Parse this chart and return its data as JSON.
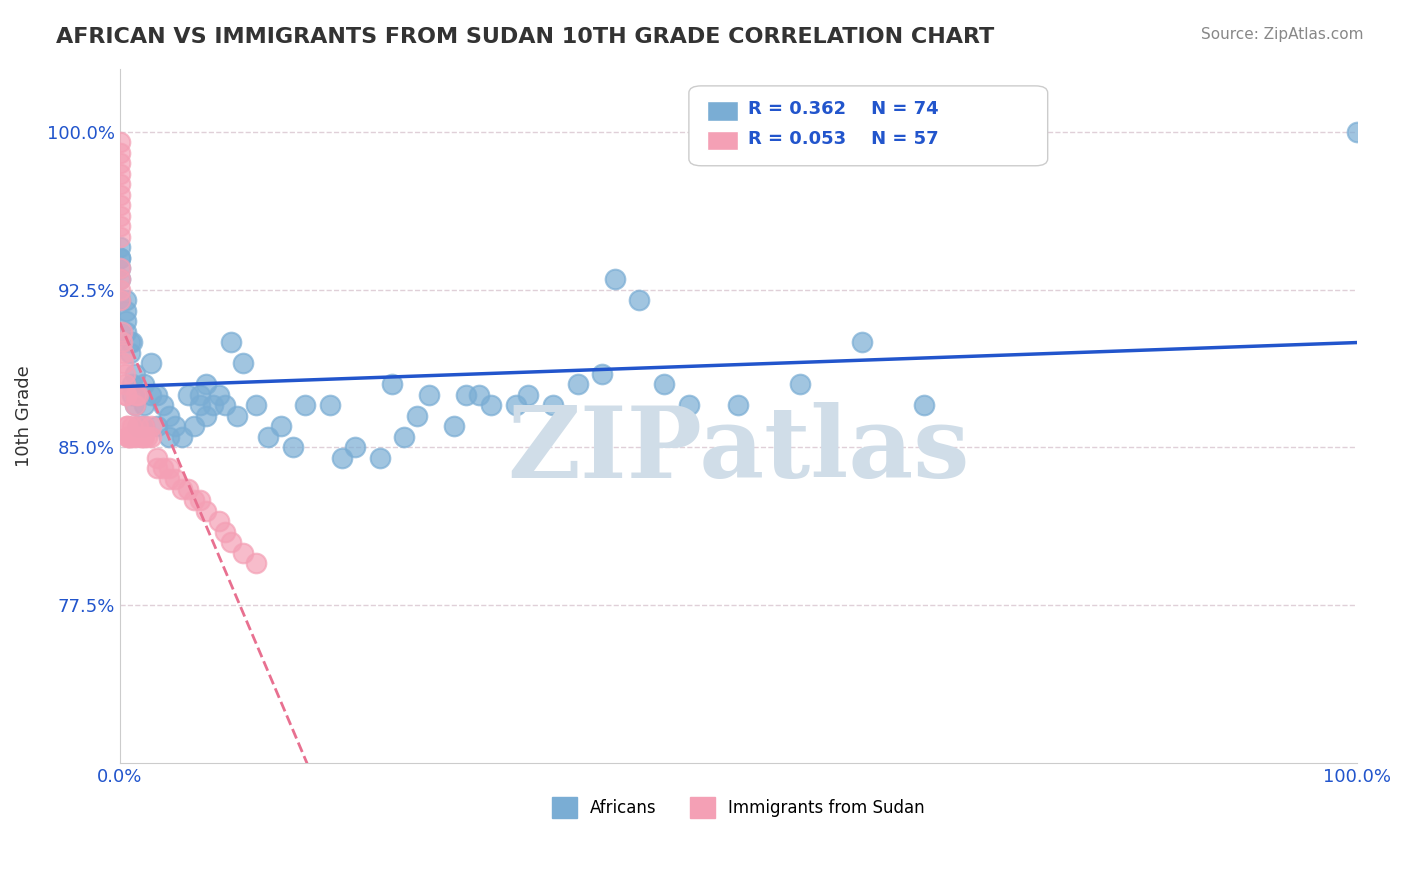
{
  "title": "AFRICAN VS IMMIGRANTS FROM SUDAN 10TH GRADE CORRELATION CHART",
  "source_text": "Source: ZipAtlas.com",
  "xlabel": "",
  "ylabel": "10th Grade",
  "xlim": [
    0.0,
    1.0
  ],
  "ylim": [
    0.7,
    1.03
  ],
  "yticks": [
    0.775,
    0.85,
    0.925,
    1.0
  ],
  "ytick_labels": [
    "77.5%",
    "85.0%",
    "92.5%",
    "100.0%"
  ],
  "xticks": [
    0.0,
    1.0
  ],
  "xtick_labels": [
    "0.0%",
    "100.0%"
  ],
  "legend_r1": "R = 0.362",
  "legend_n1": "N = 74",
  "legend_r2": "R = 0.053",
  "legend_n2": "N = 57",
  "africans_color": "#7aadd4",
  "sudan_color": "#f4a0b5",
  "trend_african_color": "#2255cc",
  "trend_sudan_color": "#e87090",
  "watermark": "ZIPatlas",
  "watermark_color": "#d0dde8",
  "background_color": "#ffffff",
  "grid_color": "#e0d0d8",
  "african_x": [
    0.0,
    0.0,
    0.0,
    0.0,
    0.0,
    0.0,
    0.005,
    0.005,
    0.005,
    0.005,
    0.008,
    0.008,
    0.01,
    0.01,
    0.01,
    0.012,
    0.012,
    0.015,
    0.015,
    0.02,
    0.02,
    0.02,
    0.025,
    0.025,
    0.03,
    0.03,
    0.035,
    0.04,
    0.04,
    0.045,
    0.05,
    0.055,
    0.06,
    0.065,
    0.065,
    0.07,
    0.07,
    0.075,
    0.08,
    0.085,
    0.09,
    0.095,
    0.1,
    0.11,
    0.12,
    0.13,
    0.14,
    0.15,
    0.17,
    0.18,
    0.19,
    0.21,
    0.22,
    0.23,
    0.24,
    0.25,
    0.27,
    0.28,
    0.29,
    0.3,
    0.32,
    0.33,
    0.35,
    0.37,
    0.39,
    0.4,
    0.42,
    0.44,
    0.46,
    0.5,
    0.55,
    0.6,
    0.65,
    1.0
  ],
  "african_y": [
    0.94,
    0.94,
    0.945,
    0.93,
    0.935,
    0.92,
    0.915,
    0.91,
    0.905,
    0.92,
    0.9,
    0.895,
    0.88,
    0.875,
    0.9,
    0.87,
    0.885,
    0.86,
    0.875,
    0.88,
    0.87,
    0.86,
    0.875,
    0.89,
    0.86,
    0.875,
    0.87,
    0.855,
    0.865,
    0.86,
    0.855,
    0.875,
    0.86,
    0.87,
    0.875,
    0.865,
    0.88,
    0.87,
    0.875,
    0.87,
    0.9,
    0.865,
    0.89,
    0.87,
    0.855,
    0.86,
    0.85,
    0.87,
    0.87,
    0.845,
    0.85,
    0.845,
    0.88,
    0.855,
    0.865,
    0.875,
    0.86,
    0.875,
    0.875,
    0.87,
    0.87,
    0.875,
    0.87,
    0.88,
    0.885,
    0.93,
    0.92,
    0.88,
    0.87,
    0.87,
    0.88,
    0.9,
    0.87,
    1.0
  ],
  "sudan_x": [
    0.0,
    0.0,
    0.0,
    0.0,
    0.0,
    0.0,
    0.0,
    0.0,
    0.0,
    0.0,
    0.0,
    0.0,
    0.0,
    0.0,
    0.002,
    0.002,
    0.003,
    0.003,
    0.004,
    0.004,
    0.005,
    0.005,
    0.006,
    0.006,
    0.007,
    0.007,
    0.008,
    0.01,
    0.01,
    0.012,
    0.012,
    0.013,
    0.015,
    0.015,
    0.017,
    0.018,
    0.02,
    0.02,
    0.022,
    0.025,
    0.025,
    0.03,
    0.03,
    0.035,
    0.04,
    0.04,
    0.045,
    0.05,
    0.055,
    0.06,
    0.065,
    0.07,
    0.08,
    0.085,
    0.09,
    0.1,
    0.11
  ],
  "sudan_y": [
    0.995,
    0.99,
    0.985,
    0.98,
    0.975,
    0.97,
    0.965,
    0.96,
    0.955,
    0.95,
    0.935,
    0.93,
    0.925,
    0.92,
    0.905,
    0.9,
    0.895,
    0.89,
    0.885,
    0.88,
    0.875,
    0.875,
    0.86,
    0.86,
    0.855,
    0.855,
    0.855,
    0.855,
    0.86,
    0.855,
    0.87,
    0.875,
    0.86,
    0.875,
    0.855,
    0.855,
    0.855,
    0.86,
    0.855,
    0.855,
    0.86,
    0.84,
    0.845,
    0.84,
    0.835,
    0.84,
    0.835,
    0.83,
    0.83,
    0.825,
    0.825,
    0.82,
    0.815,
    0.81,
    0.805,
    0.8,
    0.795
  ]
}
